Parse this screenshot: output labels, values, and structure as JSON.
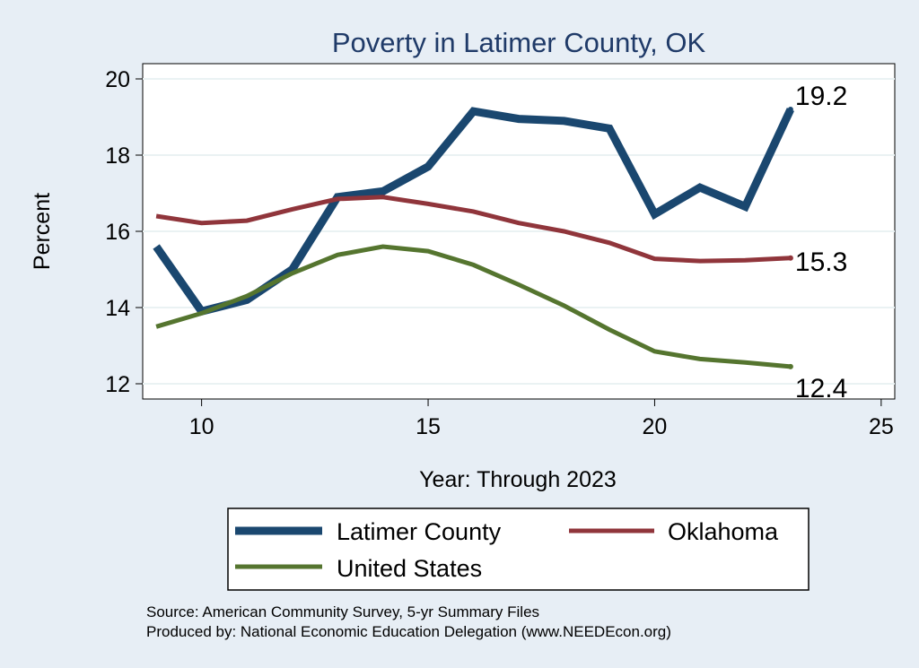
{
  "chart_data": {
    "type": "line",
    "title": "Poverty in Latimer County, OK",
    "xlabel": "Year: Through 2023",
    "ylabel": "Percent",
    "xlim": [
      8.7,
      25.3
    ],
    "ylim": [
      11.6,
      20.4
    ],
    "xticks": [
      10,
      15,
      20,
      25
    ],
    "yticks": [
      12,
      14,
      16,
      18,
      20
    ],
    "grid": true,
    "x": [
      9,
      10,
      11,
      12,
      13,
      14,
      15,
      16,
      17,
      18,
      19,
      20,
      21,
      22,
      23
    ],
    "series": [
      {
        "name": "Latimer County",
        "color": "#1a476f",
        "values": [
          15.6,
          13.9,
          14.2,
          15.0,
          16.9,
          17.05,
          17.7,
          19.15,
          18.95,
          18.9,
          18.7,
          16.45,
          17.15,
          16.65,
          19.2
        ],
        "end_label": "19.2"
      },
      {
        "name": "Oklahoma",
        "color": "#90353b",
        "values": [
          16.4,
          16.22,
          16.28,
          16.58,
          16.85,
          16.9,
          16.72,
          16.52,
          16.22,
          16.0,
          15.7,
          15.28,
          15.22,
          15.24,
          15.3
        ],
        "end_label": "15.3"
      },
      {
        "name": "United States",
        "color": "#55752f",
        "values": [
          13.5,
          13.85,
          14.3,
          14.9,
          15.38,
          15.6,
          15.48,
          15.12,
          14.6,
          14.05,
          13.42,
          12.85,
          12.65,
          12.56,
          12.45
        ],
        "end_label": "12.4"
      }
    ],
    "legend": {
      "position": "bottom",
      "entries": [
        "Latimer County",
        "Oklahoma",
        "United States"
      ]
    }
  },
  "source_lines": [
    "Source: American Community Survey, 5-yr Summary Files",
    "Produced by: National Economic Education Delegation (www.NEEDEcon.org)"
  ]
}
